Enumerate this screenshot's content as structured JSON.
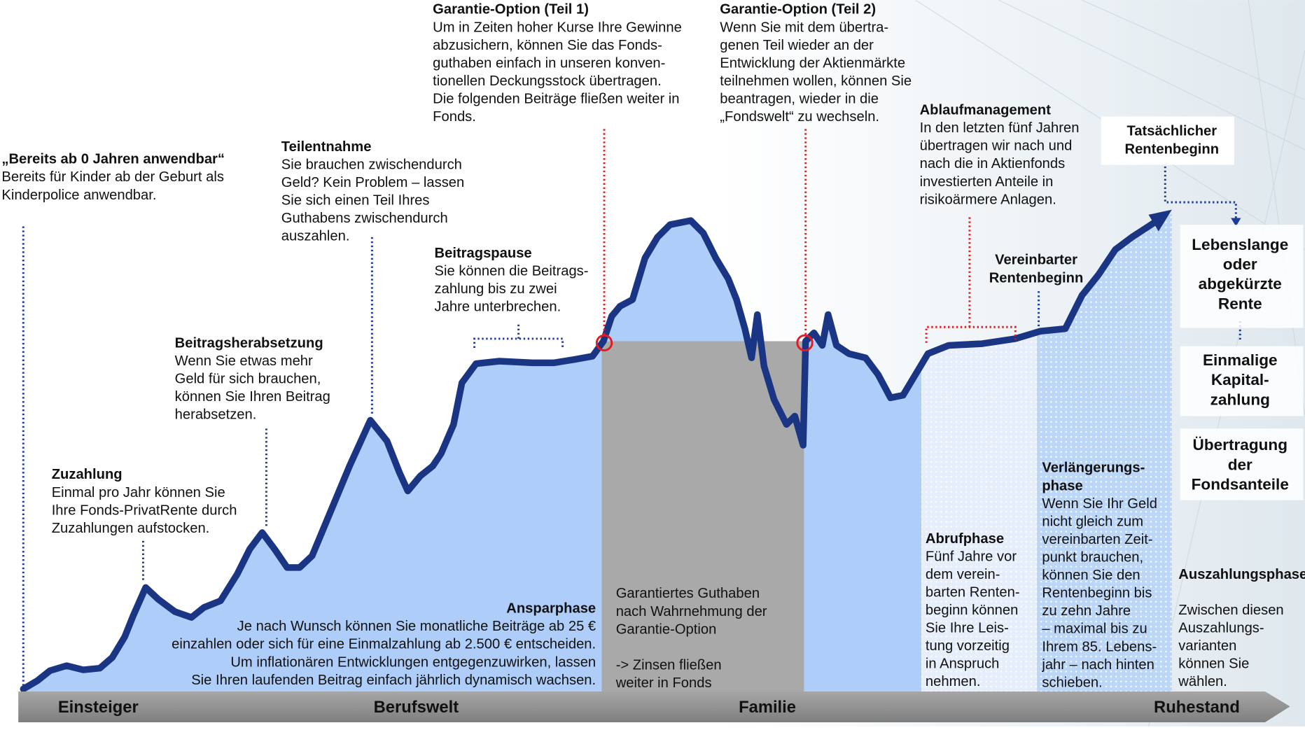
{
  "annotations": [
    {
      "title": "„Bereits ab 0 Jahren anwendbar“",
      "lines": [
        "Bereits für Kinder ab der Geburt als",
        "Kinderpolice anwendbar."
      ]
    },
    {
      "title": "Zuzahlung",
      "lines": [
        "Einmal pro Jahr können Sie",
        "Ihre Fonds-PrivatRente durch",
        "Zuzahlungen aufstocken."
      ]
    },
    {
      "title": "Beitragsherabsetzung",
      "lines": [
        "Wenn Sie etwas mehr",
        "Geld für sich brauchen,",
        "können Sie Ihren Beitrag",
        "herabsetzen."
      ]
    },
    {
      "title": "Teilentnahme",
      "lines": [
        "Sie brauchen zwischendurch",
        "Geld? Kein Problem – lassen",
        "Sie sich einen Teil Ihres",
        "Guthabens zwischendurch",
        "auszahlen."
      ]
    },
    {
      "title": "Beitragspause",
      "lines": [
        "Sie können die Beitrags-",
        "zahlung bis zu zwei",
        "Jahre unterbrechen."
      ]
    },
    {
      "title": "Garantie-Option (Teil 1)",
      "lines": [
        "Um in Zeiten hoher Kurse Ihre Gewinne",
        "abzusichern, können Sie das Fonds-",
        "guthaben einfach in unseren konven-",
        "tionellen Deckungsstock übertragen.",
        "Die folgenden Beiträge fließen weiter in",
        "Fonds."
      ]
    },
    {
      "title": "Garantie-Option (Teil 2)",
      "lines": [
        "Wenn Sie mit dem übertra-",
        "genen Teil wieder an der",
        "Entwicklung der Aktienmärkte",
        "teilnehmen wollen, können Sie",
        "beantragen, wieder in die",
        "„Fondswelt“ zu wechseln."
      ]
    },
    {
      "title": "Ablaufmanagement",
      "lines": [
        "In den letzten fünf Jahren",
        "übertragen wir nach und",
        "nach die in Aktienfonds",
        "investierten Anteile in",
        "risikoärmere Anlagen."
      ]
    }
  ],
  "rentenbeginn": {
    "agreed": [
      "Vereinbarter",
      "Rentenbeginn"
    ],
    "actual": [
      "Tatsächlicher",
      "Rentenbeginn"
    ]
  },
  "payout_options": [
    [
      "Lebenslange",
      "oder",
      "abgekürzte",
      "Rente"
    ],
    [
      "Einmalige",
      "Kapital-",
      "zahlung"
    ],
    [
      "Übertragung",
      "der",
      "Fondsanteile"
    ]
  ],
  "phases": [
    {
      "title": "Ansparphase",
      "lines": [
        "Je nach Wunsch können Sie monatliche Beiträge ab 25 €",
        "einzahlen oder sich für eine Einmalzahlung ab 2.500 € entscheiden.",
        "Um inflationären Entwicklungen entgegenzuwirken, lassen",
        "Sie Ihren laufenden Beitrag einfach jährlich dynamisch wachsen."
      ]
    },
    {
      "paragraphs": [
        [
          "Garantiertes Guthaben",
          "nach Wahrnehmung der",
          "Garantie-Option"
        ],
        [
          "-> Zinsen fließen",
          "weiter in Fonds"
        ]
      ]
    },
    {
      "title": "Abrufphase",
      "lines": [
        "Fünf Jahre vor",
        "dem verein-",
        "barten Renten-",
        "beginn können",
        "Sie Ihre Leis-",
        "tung vorzeitig",
        "in Anspruch",
        "nehmen."
      ]
    },
    {
      "title": [
        "Verlängerungs-",
        "phase"
      ],
      "lines": [
        "Wenn Sie Ihr Geld",
        "nicht gleich zum",
        "vereinbarten Zeit-",
        "punkt brauchen,",
        "können Sie den",
        "Rentenbeginn bis",
        "zu zehn Jahre",
        "– maximal bis zu",
        "Ihrem 85. Lebens-",
        "jahr – nach hinten",
        "schieben."
      ]
    },
    {
      "title": "Auszahlungsphase",
      "lines": [
        "Zwischen diesen",
        "Auszahlungs-",
        "varianten",
        "können Sie",
        " wählen."
      ]
    }
  ],
  "timeline": [
    "Einsteiger",
    "Berufswelt",
    "Familie",
    "Ruhestand"
  ]
}
